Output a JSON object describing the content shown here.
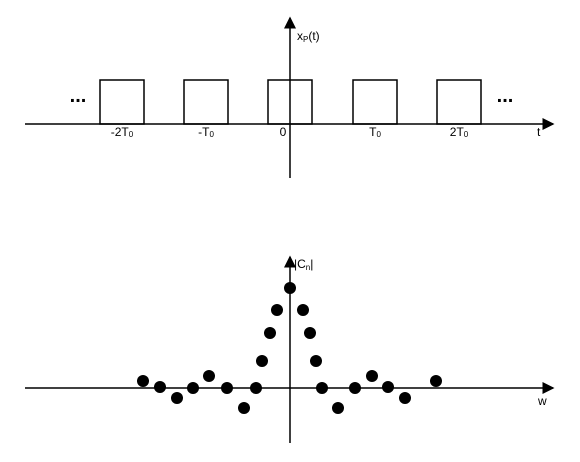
{
  "top": {
    "ylabel": {
      "main": "x",
      "sub": "P",
      "rest": "(t)"
    },
    "xlabel": "t",
    "ellipsis_left": "...",
    "ellipsis_right": "...",
    "ticks": [
      {
        "main": "-2T",
        "sub": "0"
      },
      {
        "main": "-T",
        "sub": "0"
      },
      {
        "main": "0",
        "sub": ""
      },
      {
        "main": "T",
        "sub": "0"
      },
      {
        "main": "2T",
        "sub": "0"
      }
    ]
  },
  "bottom": {
    "ylabel": {
      "main": "|C",
      "sub": "n",
      "rest": "|"
    },
    "xlabel": "w"
  }
}
